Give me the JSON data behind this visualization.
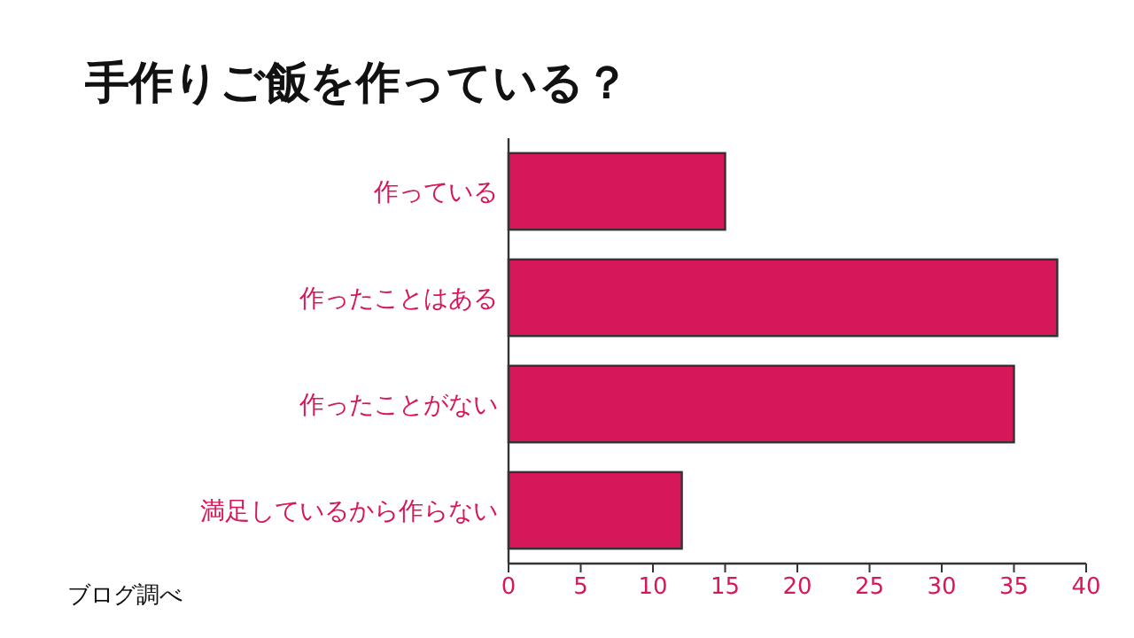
{
  "chart_data": {
    "type": "bar",
    "orientation": "horizontal",
    "title": "手作りご飯を作っている？",
    "categories": [
      "作っている",
      "作ったことはある",
      "作ったことがない",
      "満足しているから作らない"
    ],
    "values": [
      15,
      38,
      35,
      12
    ],
    "color": "#d6185a",
    "xlim": [
      0,
      40
    ],
    "xticks": [
      0,
      5,
      10,
      15,
      20,
      25,
      30,
      35,
      40
    ],
    "grid": false,
    "annotations": [
      "ブログ調べ"
    ]
  }
}
